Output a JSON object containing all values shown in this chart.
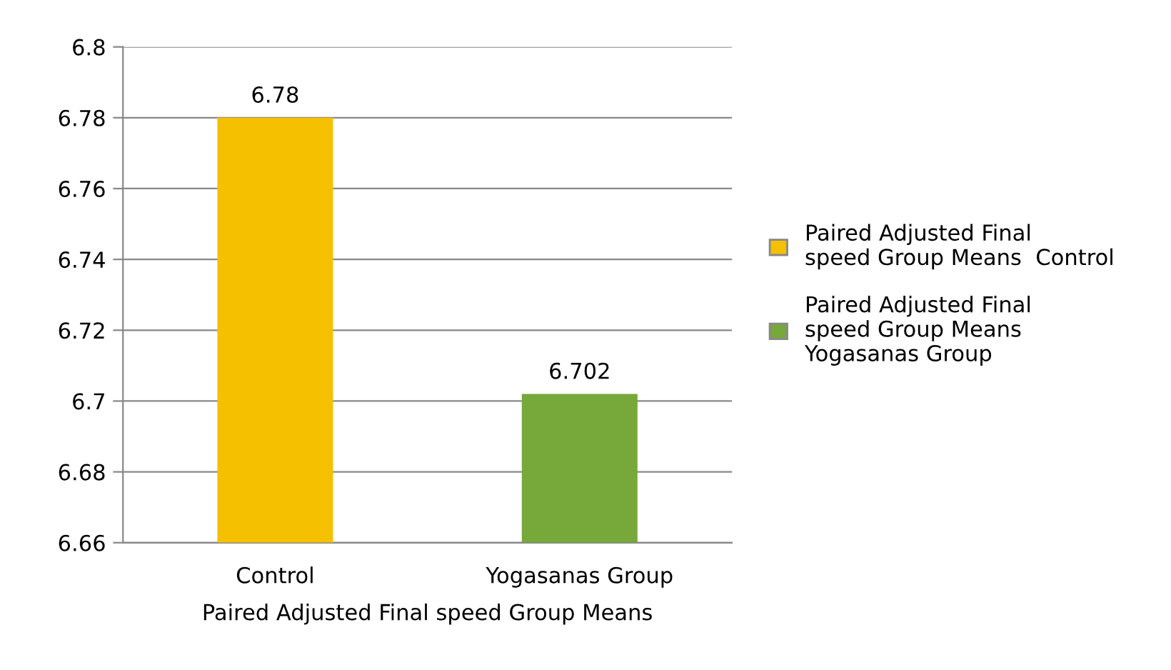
{
  "chart_data": {
    "type": "bar",
    "categories": [
      "Control",
      "Yogasanas Group"
    ],
    "xlabel": "Paired Adjusted Final speed Group Means",
    "series": [
      {
        "name": "Paired Adjusted Final speed Group Means  Control",
        "color": "#f5c000",
        "values": [
          6.78,
          null
        ]
      },
      {
        "name": "Paired Adjusted Final speed Group Means  Yogasanas Group",
        "color": "#77a83a",
        "values": [
          null,
          6.702
        ]
      }
    ],
    "ylim": [
      6.66,
      6.8
    ],
    "yticks": [
      6.66,
      6.68,
      6.7,
      6.72,
      6.74,
      6.76,
      6.78,
      6.8
    ],
    "grid": "y",
    "legend": "right",
    "data_labels": true
  }
}
